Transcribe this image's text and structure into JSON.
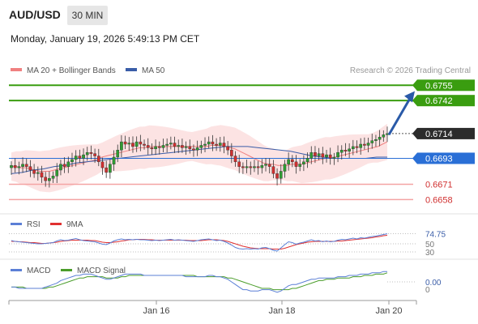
{
  "header": {
    "symbol": "AUD/USD",
    "timeframe": "30 MIN",
    "datetime": "Monday, January 19, 2026 5:49:13 PM CET"
  },
  "legend": {
    "ma20_label": "MA 20 + Bollinger Bands",
    "ma50_label": "MA 50",
    "copyright": "Research © 2026 Trading Central",
    "ma20_color": "#f08080",
    "ma50_color": "#3a5da8"
  },
  "rsi_legend": {
    "rsi": "RSI",
    "ma": "9MA",
    "rsi_color": "#5b7fd6",
    "ma_color": "#e03030"
  },
  "macd_legend": {
    "macd": "MACD",
    "signal": "MACD Signal",
    "macd_color": "#5b7fd6",
    "signal_color": "#4a9d2a"
  },
  "colors": {
    "up": "#2e9d32",
    "down": "#d03030",
    "resistance": "#3a9d10",
    "support": "#f4a4a4",
    "pivot": "#2a6fd6",
    "current": "#2c2c2c"
  },
  "chart_data": {
    "type": "candlestick",
    "x_labels": [
      "Jan 16",
      "Jan 18",
      "Jan 20"
    ],
    "ylim": [
      0.665,
      0.676
    ],
    "levels": [
      {
        "label": "0.6755",
        "value": 0.6755,
        "kind": "resistance"
      },
      {
        "label": "0.6742",
        "value": 0.6742,
        "kind": "resistance"
      },
      {
        "label": "0.6714",
        "value": 0.6714,
        "kind": "current"
      },
      {
        "label": "0.6693",
        "value": 0.6693,
        "kind": "pivot"
      },
      {
        "label": "0.6671",
        "value": 0.6671,
        "kind": "support"
      },
      {
        "label": "0.6658",
        "value": 0.6658,
        "kind": "support"
      }
    ],
    "arrow": {
      "from": 0.6713,
      "to": 0.675
    },
    "closes": [
      0.6687,
      0.6685,
      0.6686,
      0.6688,
      0.6686,
      0.6683,
      0.668,
      0.6681,
      0.6677,
      0.6674,
      0.6676,
      0.6678,
      0.6683,
      0.6688,
      0.6686,
      0.669,
      0.6692,
      0.6695,
      0.6693,
      0.6696,
      0.6698,
      0.6697,
      0.6695,
      0.669,
      0.6685,
      0.6681,
      0.6688,
      0.6694,
      0.67,
      0.6707,
      0.6705,
      0.6706,
      0.6703,
      0.6707,
      0.6705,
      0.6704,
      0.6702,
      0.6701,
      0.6703,
      0.6702,
      0.6704,
      0.6705,
      0.6706,
      0.6703,
      0.6704,
      0.6702,
      0.6703,
      0.6701,
      0.67,
      0.6702,
      0.6704,
      0.6705,
      0.6707,
      0.6705,
      0.6704,
      0.6706,
      0.6703,
      0.67,
      0.6695,
      0.669,
      0.6686,
      0.6685,
      0.6686,
      0.6685,
      0.6686,
      0.6685,
      0.6687,
      0.6688,
      0.6686,
      0.668,
      0.6676,
      0.6682,
      0.6688,
      0.6692,
      0.669,
      0.6686,
      0.6688,
      0.669,
      0.6693,
      0.6698,
      0.6695,
      0.6697,
      0.6694,
      0.6696,
      0.6693,
      0.6694,
      0.6698,
      0.67,
      0.6699,
      0.6701,
      0.6703,
      0.6702,
      0.6705,
      0.6704,
      0.6706,
      0.6708,
      0.6709,
      0.6711,
      0.6713,
      0.6714
    ],
    "ma20": [
      0.6686,
      0.6686,
      0.6685,
      0.6685,
      0.6684,
      0.6683,
      0.6682,
      0.6682,
      0.6682,
      0.6683,
      0.6684,
      0.6685,
      0.6686,
      0.6687,
      0.6688,
      0.6689,
      0.669,
      0.6691,
      0.6692,
      0.6694,
      0.6695,
      0.6696,
      0.6697,
      0.6698,
      0.6699,
      0.67,
      0.6701,
      0.6702,
      0.6702,
      0.6703,
      0.6703,
      0.6703,
      0.6703,
      0.6703,
      0.6703,
      0.6703,
      0.6703,
      0.6703,
      0.6703,
      0.6703,
      0.6703,
      0.6703,
      0.6704,
      0.6704,
      0.6704,
      0.6703,
      0.6702,
      0.6701,
      0.6699,
      0.6697,
      0.6695,
      0.6693,
      0.6691,
      0.6689,
      0.6688,
      0.6688,
      0.6687,
      0.6687,
      0.6687,
      0.6688,
      0.6688,
      0.6688,
      0.6689,
      0.669,
      0.6691,
      0.6692,
      0.6693,
      0.6693,
      0.6694,
      0.6695,
      0.6696,
      0.6697,
      0.6698,
      0.6699,
      0.67,
      0.6701,
      0.6702,
      0.6703,
      0.6705,
      0.6707
    ],
    "ma50": [
      0.668,
      0.6681,
      0.6683,
      0.6684,
      0.6686,
      0.6687,
      0.6689,
      0.669,
      0.6691,
      0.6692,
      0.6693,
      0.6694,
      0.6695,
      0.6696,
      0.6697,
      0.6698,
      0.6699,
      0.67,
      0.6701,
      0.6702,
      0.6703,
      0.6703,
      0.6703,
      0.6702,
      0.6701,
      0.67,
      0.6699,
      0.6697,
      0.6695,
      0.6694,
      0.6693,
      0.6693,
      0.6693,
      0.6693,
      0.6694,
      0.6694
    ],
    "rsi_ticks": [
      "74.75",
      "50",
      "30"
    ],
    "rsi": [
      58,
      56,
      55,
      54,
      53,
      52,
      51,
      50,
      50,
      51,
      52,
      53,
      57,
      60,
      58,
      59,
      61,
      63,
      60,
      58,
      57,
      56,
      55,
      52,
      49,
      48,
      52,
      57,
      60,
      62,
      60,
      61,
      60,
      61,
      60,
      60,
      59,
      58,
      59,
      58,
      59,
      60,
      61,
      59,
      60,
      59,
      58,
      57,
      56,
      58,
      60,
      61,
      62,
      60,
      58,
      59,
      56,
      52,
      47,
      41,
      38,
      37,
      38,
      37,
      38,
      37,
      40,
      41,
      38,
      34,
      32,
      40,
      48,
      55,
      53,
      49,
      52,
      54,
      57,
      60,
      57,
      58,
      55,
      57,
      55,
      56,
      59,
      61,
      60,
      62,
      64,
      62,
      65,
      64,
      66,
      68,
      69,
      71,
      73,
      74.75
    ],
    "rsi_ma": [
      56,
      56,
      55,
      55,
      54,
      53,
      53,
      52,
      51,
      51,
      52,
      53,
      54,
      56,
      57,
      58,
      59,
      59,
      59,
      59,
      59,
      58,
      58,
      56,
      54,
      53,
      53,
      54,
      55,
      57,
      58,
      60,
      60,
      61,
      61,
      61,
      60,
      60,
      59,
      59,
      59,
      59,
      59,
      59,
      59,
      59,
      59,
      58,
      58,
      58,
      58,
      59,
      60,
      60,
      60,
      59,
      58,
      56,
      53,
      50,
      47,
      44,
      42,
      40,
      39,
      38,
      38,
      38,
      38,
      37,
      37,
      37,
      39,
      42,
      45,
      48,
      50,
      52,
      54,
      55,
      56,
      56,
      56,
      56,
      56,
      56,
      57,
      57,
      58,
      59,
      60,
      61,
      62,
      63,
      64,
      65,
      67,
      68,
      70,
      71
    ],
    "macd_tick": "0.00",
    "macd": [
      -4,
      -4,
      -5,
      -5,
      -5,
      -5,
      -5,
      -5,
      -5,
      -4,
      -3,
      -2,
      -1,
      1,
      2,
      3,
      4,
      5,
      5,
      6,
      6,
      6,
      5,
      4,
      3,
      2,
      2,
      3,
      4,
      5,
      6,
      6,
      6,
      6,
      6,
      5,
      5,
      5,
      5,
      5,
      5,
      5,
      5,
      5,
      5,
      5,
      4,
      4,
      4,
      4,
      4,
      4,
      5,
      5,
      4,
      4,
      3,
      2,
      0,
      -2,
      -4,
      -6,
      -6,
      -7,
      -7,
      -7,
      -6,
      -6,
      -6,
      -7,
      -8,
      -7,
      -5,
      -3,
      -2,
      -2,
      -1,
      0,
      1,
      2,
      2,
      3,
      3,
      3,
      3,
      3,
      4,
      4,
      4,
      5,
      5,
      5,
      6,
      6,
      6,
      7,
      7,
      7,
      8,
      8
    ],
    "macd_signal": [
      -4,
      -4,
      -4,
      -4,
      -5,
      -5,
      -5,
      -5,
      -5,
      -5,
      -4,
      -4,
      -3,
      -2,
      -1,
      0,
      1,
      2,
      3,
      3,
      4,
      4,
      4,
      4,
      4,
      3,
      3,
      3,
      3,
      4,
      4,
      5,
      5,
      5,
      5,
      5,
      5,
      5,
      5,
      5,
      5,
      5,
      5,
      5,
      5,
      5,
      5,
      5,
      5,
      4,
      4,
      4,
      4,
      4,
      4,
      4,
      4,
      3,
      3,
      2,
      1,
      0,
      -1,
      -2,
      -3,
      -4,
      -5,
      -5,
      -5,
      -6,
      -6,
      -6,
      -6,
      -6,
      -5,
      -5,
      -4,
      -3,
      -2,
      -1,
      0,
      1,
      1,
      2,
      2,
      2,
      3,
      3,
      3,
      3,
      4,
      4,
      4,
      5,
      5,
      5,
      6,
      6,
      6,
      7
    ]
  }
}
